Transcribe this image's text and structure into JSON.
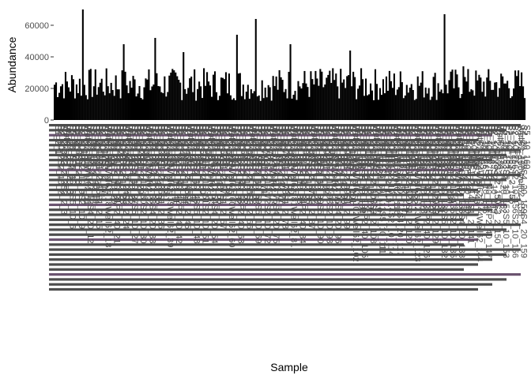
{
  "chart_data": {
    "type": "bar",
    "ylabel": "Abundance",
    "xlabel": "Sample",
    "ylim": [
      0,
      72000
    ],
    "yticks": [
      0,
      20000,
      40000,
      60000
    ],
    "ytick_labels": [
      "0",
      "20000",
      "40000",
      "60000"
    ],
    "grid": false,
    "legend": "none",
    "bar_color": "#000000",
    "label_color": "#4d4d4d",
    "sample_count": 300,
    "baseline_abundance": 22000,
    "peaks": [
      {
        "sample": 18,
        "value": 70000
      },
      {
        "sample": 44,
        "value": 48000
      },
      {
        "sample": 64,
        "value": 52000
      },
      {
        "sample": 82,
        "value": 43000
      },
      {
        "sample": 116,
        "value": 54000
      },
      {
        "sample": 128,
        "value": 64000
      },
      {
        "sample": 150,
        "value": 48000
      },
      {
        "sample": 188,
        "value": 44000
      },
      {
        "sample": 248,
        "value": 67000
      },
      {
        "sample": 260,
        "value": 34000
      }
    ],
    "sample_label_examples": [
      "S1_2",
      "S2_10",
      "S3_2",
      "Well62",
      "S4_20",
      "S5_10",
      "P2_40"
    ]
  }
}
